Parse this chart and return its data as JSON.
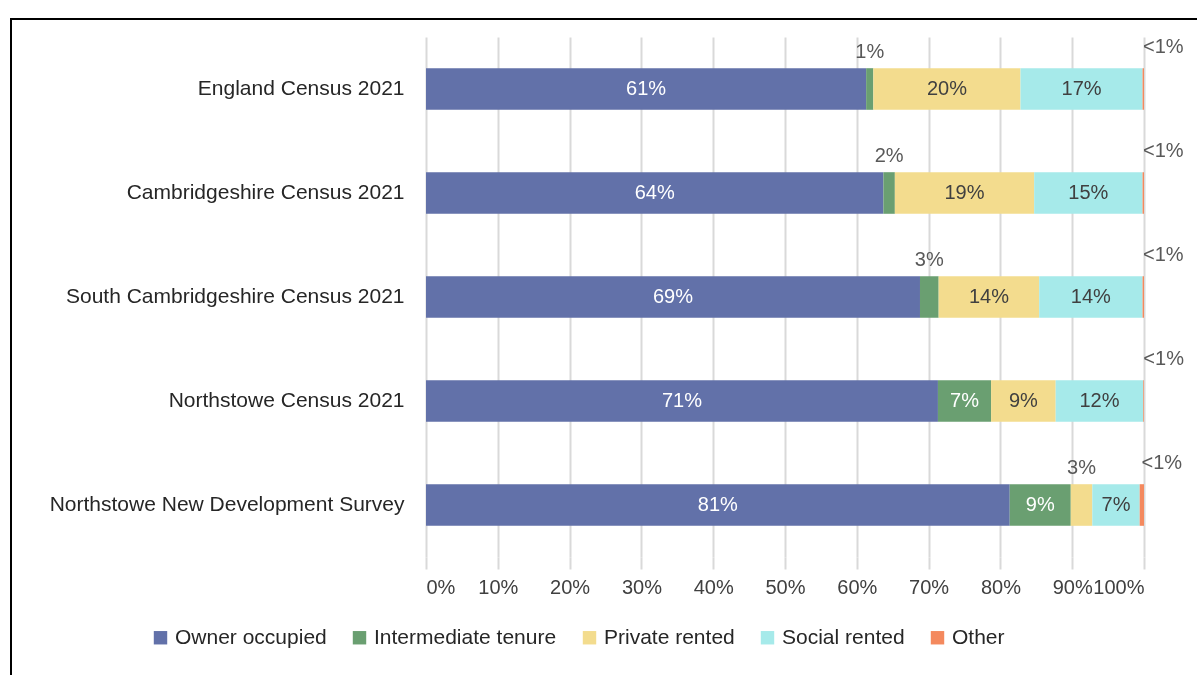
{
  "chart_data": {
    "type": "bar",
    "orientation": "horizontal",
    "stacked": true,
    "categories": [
      "England Census 2021",
      "Cambridgeshire Census 2021",
      "South Cambridgeshire Census 2021",
      "Northstowe Census 2021",
      "Northstowe New Development Survey"
    ],
    "series": [
      {
        "name": "Owner occupied",
        "color": "#6271a9",
        "values": [
          61.3,
          63.7,
          68.8,
          71.3,
          81.3
        ],
        "value_labels": [
          "61%",
          "64%",
          "69%",
          "71%",
          "81%"
        ]
      },
      {
        "name": "Intermediate tenure",
        "color": "#6a9f71",
        "values": [
          1.0,
          1.6,
          2.6,
          7.4,
          8.5
        ],
        "value_labels": [
          "1%",
          "2%",
          "3%",
          "7%",
          "9%"
        ]
      },
      {
        "name": "Private rented",
        "color": "#f3dc8e",
        "values": [
          20.5,
          19.4,
          14.0,
          9.0,
          3.0
        ],
        "value_labels": [
          "20%",
          "19%",
          "14%",
          "9%",
          "3%"
        ]
      },
      {
        "name": "Social rented",
        "color": "#a6eaea",
        "values": [
          17.0,
          15.1,
          14.4,
          12.2,
          6.6
        ],
        "value_labels": [
          "17%",
          "15%",
          "14%",
          "12%",
          "7%"
        ]
      },
      {
        "name": "Other",
        "color": "#f4895e",
        "values": [
          0.2,
          0.2,
          0.2,
          0.1,
          0.6
        ],
        "value_labels": [
          "<1%",
          "<1%",
          "<1%",
          "<1%",
          "<1%"
        ]
      }
    ],
    "xlim": [
      0,
      100
    ],
    "xticks": [
      {
        "value": 0,
        "label": "0%"
      },
      {
        "value": 10,
        "label": "10%"
      },
      {
        "value": 20,
        "label": "20%"
      },
      {
        "value": 30,
        "label": "30%"
      },
      {
        "value": 40,
        "label": "40%"
      },
      {
        "value": 50,
        "label": "50%"
      },
      {
        "value": 60,
        "label": "60%"
      },
      {
        "value": 70,
        "label": "70%"
      },
      {
        "value": 80,
        "label": "80%"
      },
      {
        "value": 90,
        "label": "90%"
      },
      {
        "value": 100,
        "label": "100%"
      }
    ],
    "grid": "x",
    "legend": "bottom"
  }
}
